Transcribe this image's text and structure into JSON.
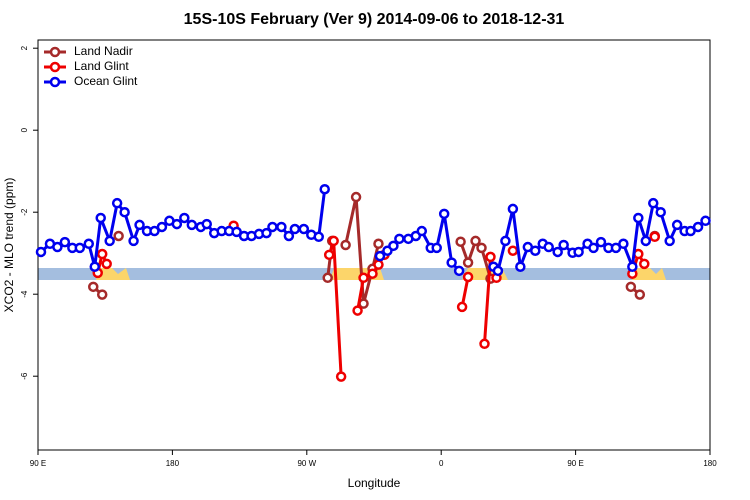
{
  "chart_data": {
    "type": "line",
    "title": "15S-10S February (Ver 9)   2014-09-06 to 2018-12-31",
    "x_label": "Longitude",
    "y_label": "XCO2 - MLO trend (ppm)",
    "xlim": [
      90,
      540
    ],
    "ylim": [
      -7.8,
      2.2
    ],
    "xticks": [
      {
        "value": 90,
        "label": "90 E"
      },
      180,
      {
        "value": 270,
        "label": "90 W"
      },
      {
        "value": 360,
        "label": "0"
      },
      {
        "value": 450,
        "label": "90 E"
      },
      {
        "value": 540,
        "label": "180"
      }
    ],
    "yticks": [
      2,
      0,
      -2,
      -4,
      -6
    ],
    "legend": "top-left",
    "series": [
      {
        "name": "Land Nadir",
        "color": "#a52a2a",
        "x": [
          127,
          133,
          null,
          144,
          null,
          284,
          287,
          null,
          296,
          303,
          308,
          314,
          318,
          null,
          373,
          378,
          383,
          387,
          393,
          null,
          487,
          493,
          null,
          503
        ],
        "values": [
          -3.82,
          -4.01,
          null,
          -2.58,
          null,
          -3.6,
          -2.7,
          null,
          -2.8,
          -1.63,
          -4.23,
          -3.38,
          -2.77,
          null,
          -2.72,
          -3.23,
          -2.7,
          -2.87,
          -3.62,
          null,
          -3.82,
          -4.01,
          null,
          -2.58
        ]
      },
      {
        "name": "Land Glint",
        "color": "#ee0000",
        "x": [
          130,
          133,
          136,
          null,
          221,
          null,
          285,
          288,
          293,
          null,
          304,
          308,
          314,
          318,
          322,
          null,
          374,
          378,
          null,
          389,
          393,
          397,
          null,
          408,
          null,
          488,
          492,
          496,
          null,
          503
        ],
        "values": [
          -3.48,
          -3.02,
          -3.26,
          null,
          -2.33,
          null,
          -3.04,
          -2.7,
          -6.01,
          null,
          -4.4,
          -3.6,
          -3.5,
          -3.28,
          -3.04,
          null,
          -4.31,
          -3.58,
          null,
          -5.21,
          -3.09,
          -3.6,
          null,
          -2.94,
          null,
          -3.5,
          -3.02,
          -3.26,
          null,
          -2.6
        ]
      },
      {
        "name": "Ocean Glint",
        "color": "#0000ee",
        "x": [
          92,
          98,
          103,
          108,
          113,
          118,
          124,
          128,
          132,
          138,
          143,
          148,
          154,
          158,
          163,
          168,
          173,
          178,
          183,
          188,
          193,
          199,
          203,
          208,
          213,
          218,
          223,
          228,
          233,
          238,
          243,
          247,
          253,
          258,
          262,
          268,
          273,
          278,
          282,
          null,
          319,
          324,
          328,
          332,
          338,
          343,
          347,
          353,
          357,
          362,
          367,
          372,
          null,
          395,
          398,
          403,
          408,
          413,
          418,
          423,
          428,
          432,
          438,
          442,
          448,
          452,
          458,
          462,
          467,
          472,
          477,
          482,
          488,
          492,
          497,
          502,
          507,
          513,
          518,
          523,
          527,
          532,
          537
        ],
        "values": [
          -2.97,
          -2.77,
          -2.85,
          -2.73,
          -2.87,
          -2.87,
          -2.77,
          -3.33,
          -2.14,
          -2.7,
          -1.78,
          -2.0,
          -2.7,
          -2.31,
          -2.46,
          -2.46,
          -2.36,
          -2.21,
          -2.29,
          -2.14,
          -2.31,
          -2.36,
          -2.29,
          -2.51,
          -2.46,
          -2.46,
          -2.48,
          -2.58,
          -2.58,
          -2.53,
          -2.51,
          -2.36,
          -2.36,
          -2.58,
          -2.41,
          -2.41,
          -2.55,
          -2.6,
          -1.44,
          null,
          -3.07,
          -2.94,
          -2.82,
          -2.65,
          -2.65,
          -2.58,
          -2.46,
          -2.87,
          -2.87,
          -2.04,
          -3.23,
          -3.43,
          null,
          -3.33,
          -3.43,
          -2.7,
          -1.92,
          -3.33,
          -2.85,
          -2.94,
          -2.77,
          -2.85,
          -2.97,
          -2.8,
          -2.99,
          -2.97,
          -2.77,
          -2.87,
          -2.73,
          -2.87,
          -2.87,
          -2.77,
          -3.33,
          -2.14,
          -2.7,
          -1.78,
          -2.0,
          -2.7,
          -2.31,
          -2.46,
          -2.46,
          -2.36,
          -2.21
        ]
      }
    ]
  }
}
